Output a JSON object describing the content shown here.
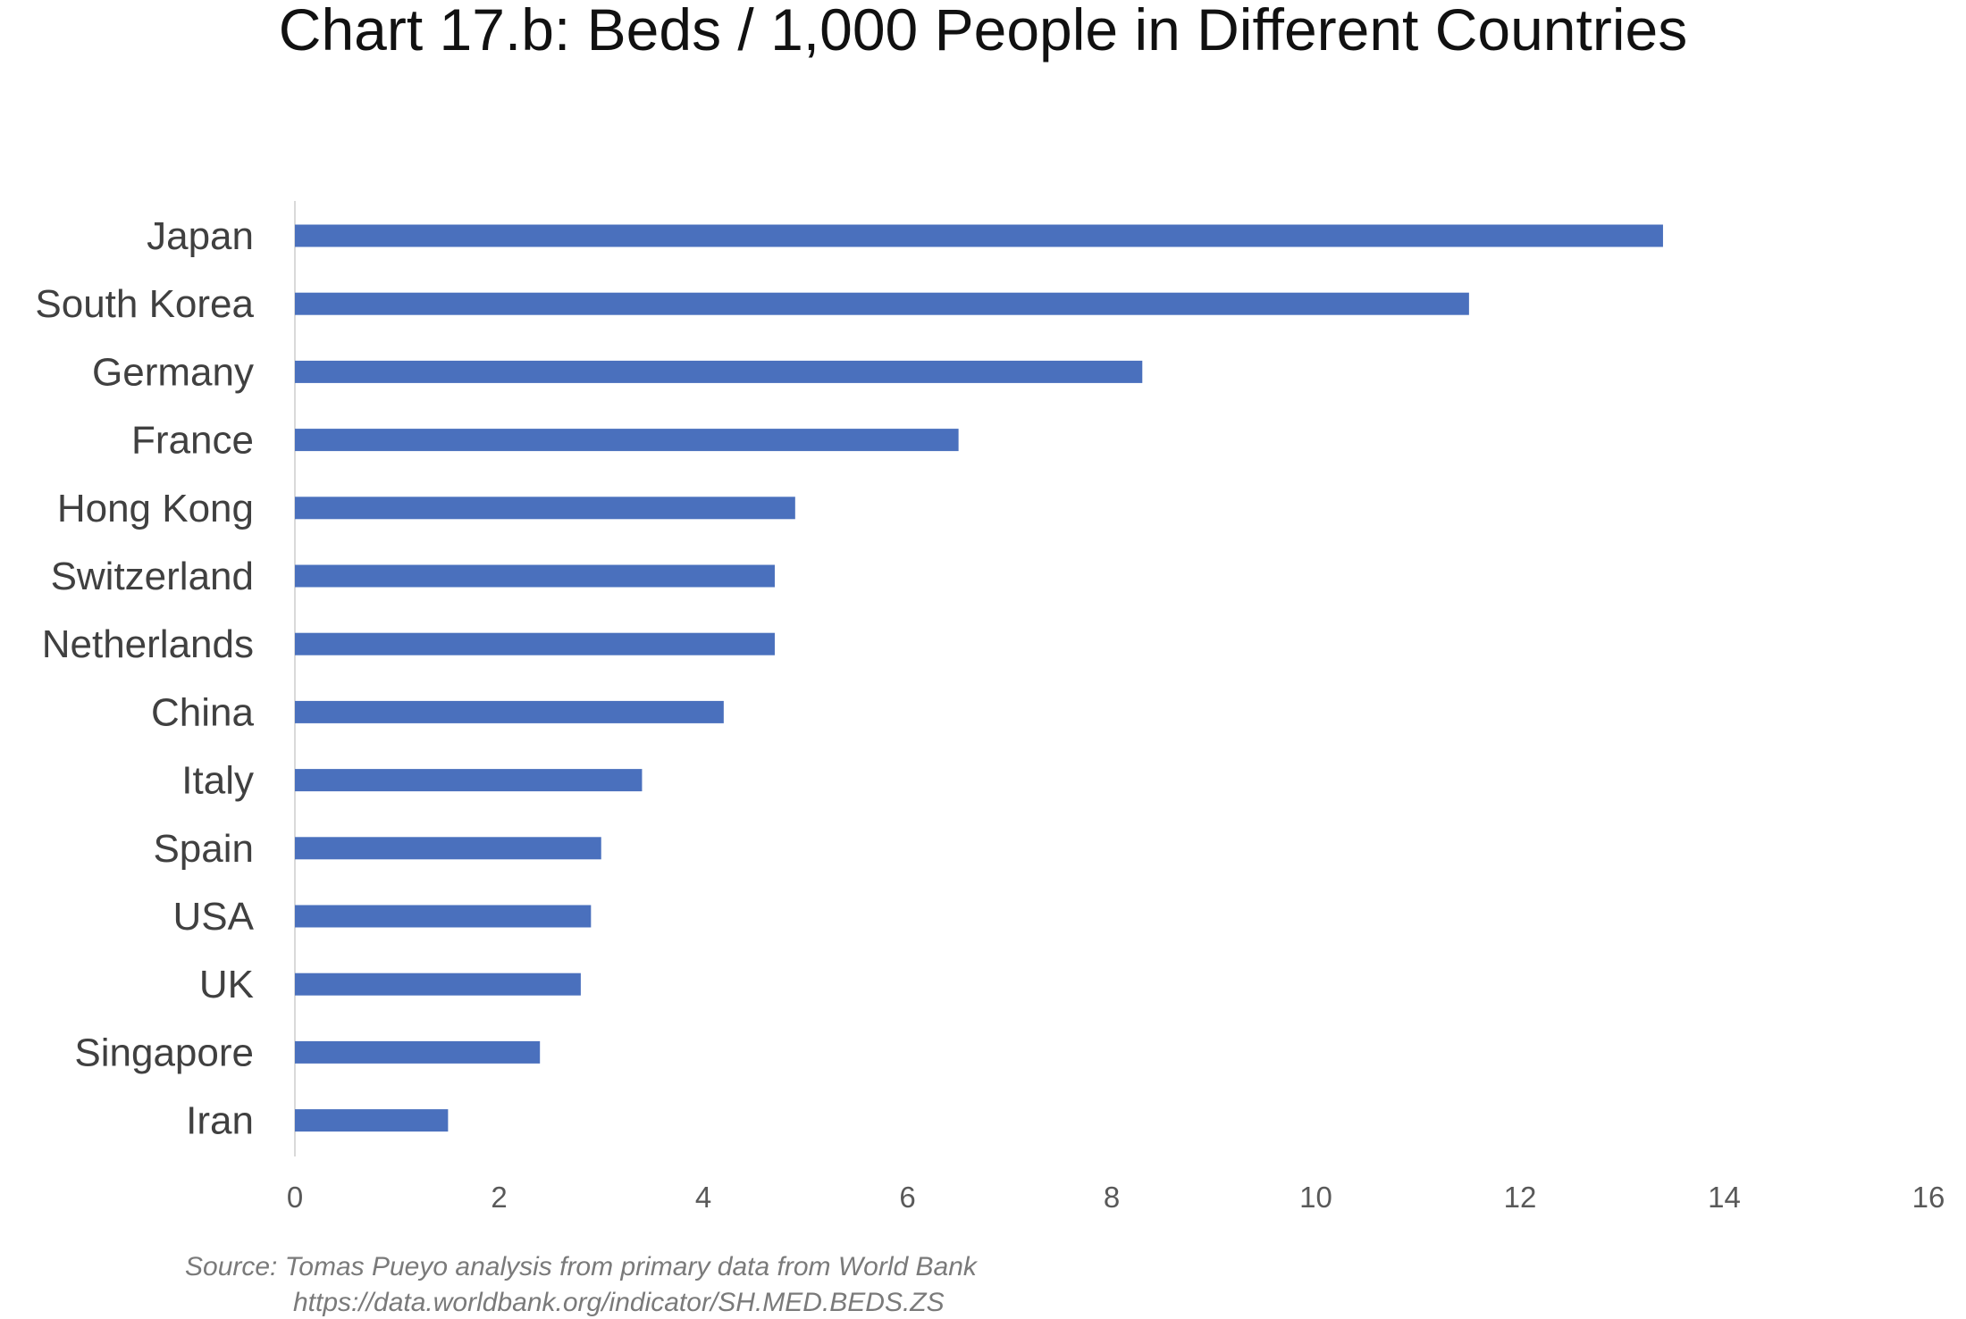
{
  "chart_data": {
    "type": "bar",
    "orientation": "horizontal",
    "title": "Chart 17.b: Beds / 1,000 People in Different Countries",
    "categories": [
      "Japan",
      "South Korea",
      "Germany",
      "France",
      "Hong Kong",
      "Switzerland",
      "Netherlands",
      "China",
      "Italy",
      "Spain",
      "USA",
      "UK",
      "Singapore",
      "Iran"
    ],
    "values": [
      13.4,
      11.5,
      8.3,
      6.5,
      4.9,
      4.7,
      4.7,
      4.2,
      3.4,
      3.0,
      2.9,
      2.8,
      2.4,
      1.5
    ],
    "xlim": [
      0,
      16
    ],
    "x_ticks": [
      "0",
      "2",
      "4",
      "6",
      "8",
      "10",
      "12",
      "14",
      "16"
    ],
    "xlabel": "",
    "ylabel": "",
    "grid": false,
    "legend": "none",
    "bar_color": "#4a70bd"
  },
  "source": {
    "line1": "Source: Tomas Pueyo analysis from primary data from World Bank",
    "line2": "https://data.worldbank.org/indicator/SH.MED.BEDS.ZS"
  }
}
